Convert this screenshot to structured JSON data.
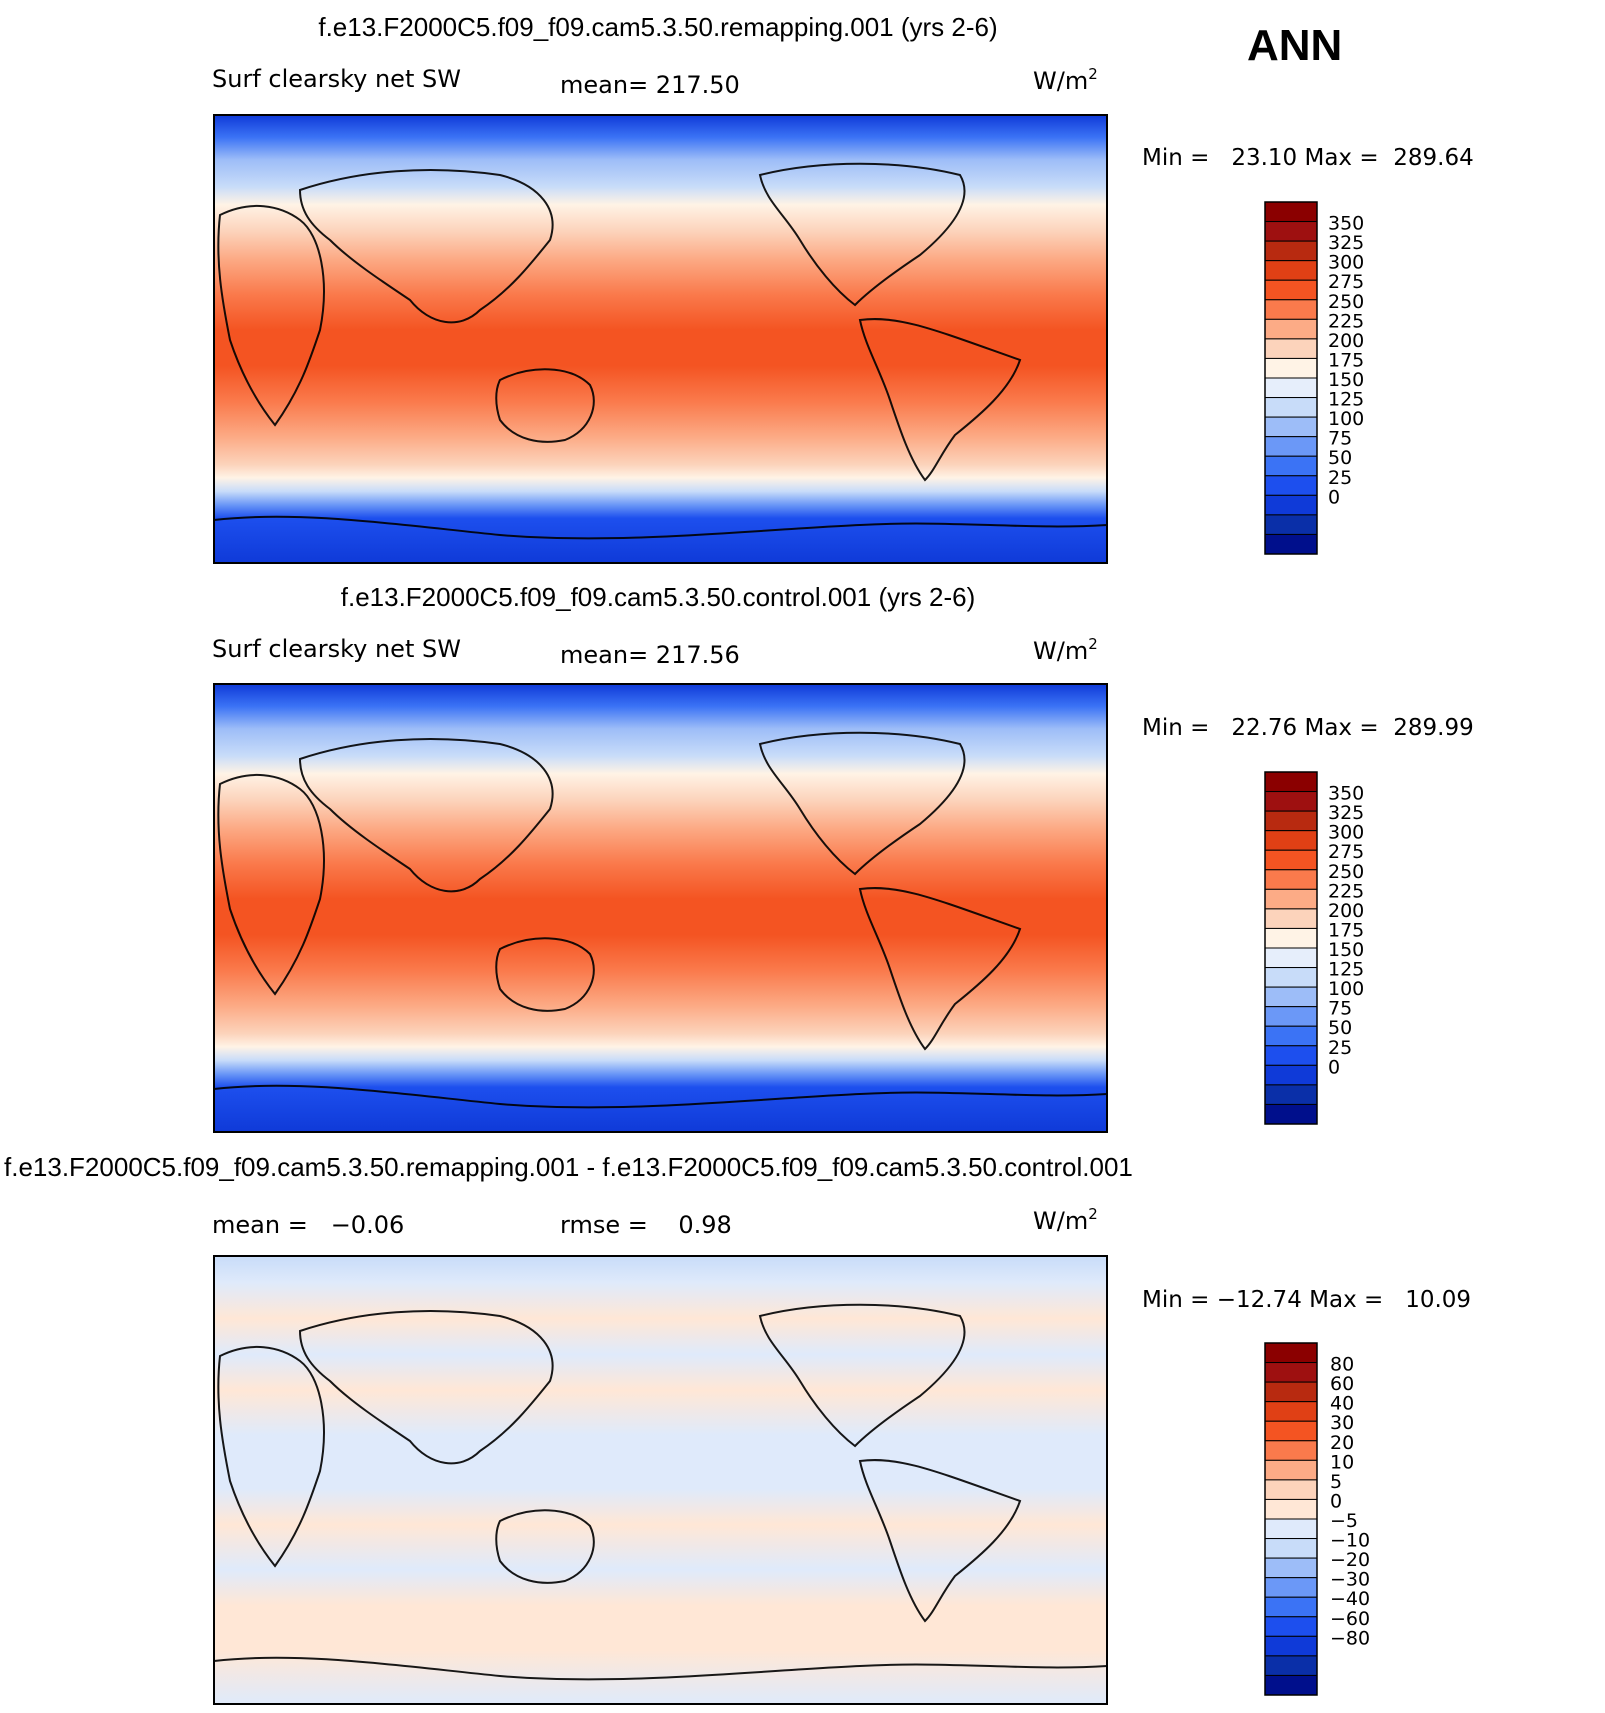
{
  "season_label": "ANN",
  "colors": {
    "abs_levels": [
      "#000f8c",
      "#0a2fa8",
      "#0f3ad8",
      "#1d4fee",
      "#3b73f5",
      "#6b98f7",
      "#9dbdf8",
      "#c8dcf9",
      "#e6eefb",
      "#fff3e6",
      "#fcd3bb",
      "#fcab86",
      "#fa7a4c",
      "#f45422",
      "#e04015",
      "#b82a10",
      "#9e1010",
      "#8b0000"
    ],
    "diff_levels": [
      "#000f8c",
      "#0a2fa8",
      "#0f3ad8",
      "#1d4fee",
      "#3b73f5",
      "#6b98f7",
      "#9dbdf8",
      "#c8dcf9",
      "#dfeafb",
      "#ffe7d6",
      "#fcd3bb",
      "#fcab86",
      "#fa7a4c",
      "#f45422",
      "#e04015",
      "#b82a10",
      "#9e1010",
      "#8b0000"
    ]
  },
  "chart_data": [
    {
      "type": "heatmap",
      "title": "f.e13.F2000C5.f09_f09.cam5.3.50.remapping.001 (yrs 2-6)",
      "left_label": "Surf clearsky net SW",
      "center_label": "mean= 217.50",
      "units_label": "W/m",
      "units_sup": "2",
      "stats_label": "Min =   23.10 Max =  289.64",
      "mean": 217.5,
      "min": 23.1,
      "max": 289.64,
      "colorbar_labels": [
        "350",
        "325",
        "300",
        "275",
        "250",
        "225",
        "200",
        "175",
        "150",
        "125",
        "100",
        "75",
        "50",
        "25",
        "0"
      ],
      "field": "absolute"
    },
    {
      "type": "heatmap",
      "title": "f.e13.F2000C5.f09_f09.cam5.3.50.control.001 (yrs 2-6)",
      "left_label": "Surf clearsky net SW",
      "center_label": "mean= 217.56",
      "units_label": "W/m",
      "units_sup": "2",
      "stats_label": "Min =   22.76 Max =  289.99",
      "mean": 217.56,
      "min": 22.76,
      "max": 289.99,
      "colorbar_labels": [
        "350",
        "325",
        "300",
        "275",
        "250",
        "225",
        "200",
        "175",
        "150",
        "125",
        "100",
        "75",
        "50",
        "25",
        "0"
      ],
      "field": "absolute"
    },
    {
      "type": "heatmap",
      "title": "f.e13.F2000C5.f09_f09.cam5.3.50.remapping.001 - f.e13.F2000C5.f09_f09.cam5.3.50.control.001",
      "left_label": "mean =   −0.06",
      "center_label": "rmse =    0.98",
      "units_label": "W/m",
      "units_sup": "2",
      "stats_label": "Min = −12.74 Max =   10.09",
      "mean": -0.06,
      "rmse": 0.98,
      "min": -12.74,
      "max": 10.09,
      "colorbar_labels": [
        "80",
        "60",
        "40",
        "30",
        "20",
        "10",
        "5",
        "0",
        "−5",
        "−10",
        "−20",
        "−30",
        "−40",
        "−60",
        "−80"
      ],
      "field": "difference"
    }
  ]
}
